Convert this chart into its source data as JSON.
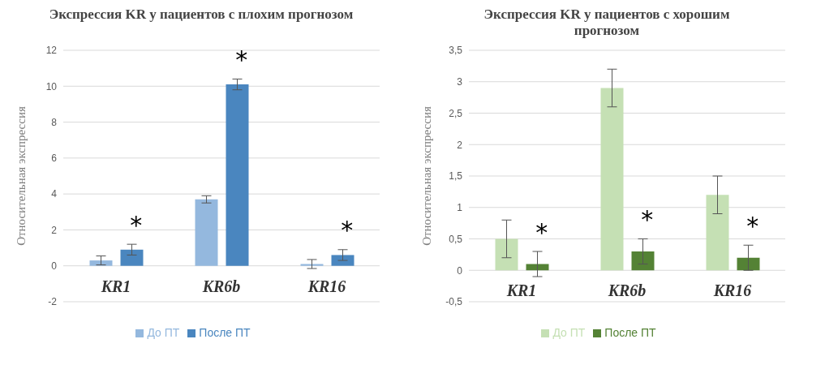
{
  "chart_data": [
    {
      "type": "bar",
      "title": "Экспрессия KR у пациентов с плохим прогнозом",
      "ylabel": "Относительная экспрессия",
      "categories": [
        "KR1",
        "KR6b",
        "KR16"
      ],
      "series": [
        {
          "name": "До ПТ",
          "color": "#94b8de",
          "values": [
            0.3,
            3.7,
            0.1
          ],
          "errors": [
            0.25,
            0.2,
            0.25
          ]
        },
        {
          "name": "После ПТ",
          "color": "#4a86bf",
          "values": [
            0.9,
            10.1,
            0.6
          ],
          "errors": [
            0.3,
            0.3,
            0.3
          ]
        }
      ],
      "ylim": [
        -2,
        12
      ],
      "yticks": [
        -2,
        0,
        2,
        4,
        6,
        8,
        10,
        12
      ],
      "grid": "y",
      "legend": "bottom",
      "annotations": [
        "*",
        "*",
        "*"
      ]
    },
    {
      "type": "bar",
      "title": "Экспрессия KR у пациентов с хорошим прогнозом",
      "ylabel": "Относительная экспрессия",
      "categories": [
        "KR1",
        "KR6b",
        "KR16"
      ],
      "series": [
        {
          "name": "До ПТ",
          "color": "#c5e0b4",
          "values": [
            0.5,
            2.9,
            1.2
          ],
          "errors": [
            0.3,
            0.3,
            0.3
          ]
        },
        {
          "name": "После ПТ",
          "color": "#548235",
          "values": [
            0.1,
            0.3,
            0.2
          ],
          "errors": [
            0.2,
            0.2,
            0.2
          ]
        }
      ],
      "ylim": [
        -0.5,
        3.5
      ],
      "yticks": [
        {
          "value": -0.5,
          "label": "-0,5"
        },
        0,
        {
          "value": 0.5,
          "label": "0,5"
        },
        1,
        {
          "value": 1.5,
          "label": "1,5"
        },
        2,
        {
          "value": 2.5,
          "label": "2,5"
        },
        3,
        {
          "value": 3.5,
          "label": "3,5"
        }
      ],
      "grid": "y",
      "legend": "bottom",
      "annotations": [
        "*",
        "*",
        "*"
      ]
    }
  ]
}
